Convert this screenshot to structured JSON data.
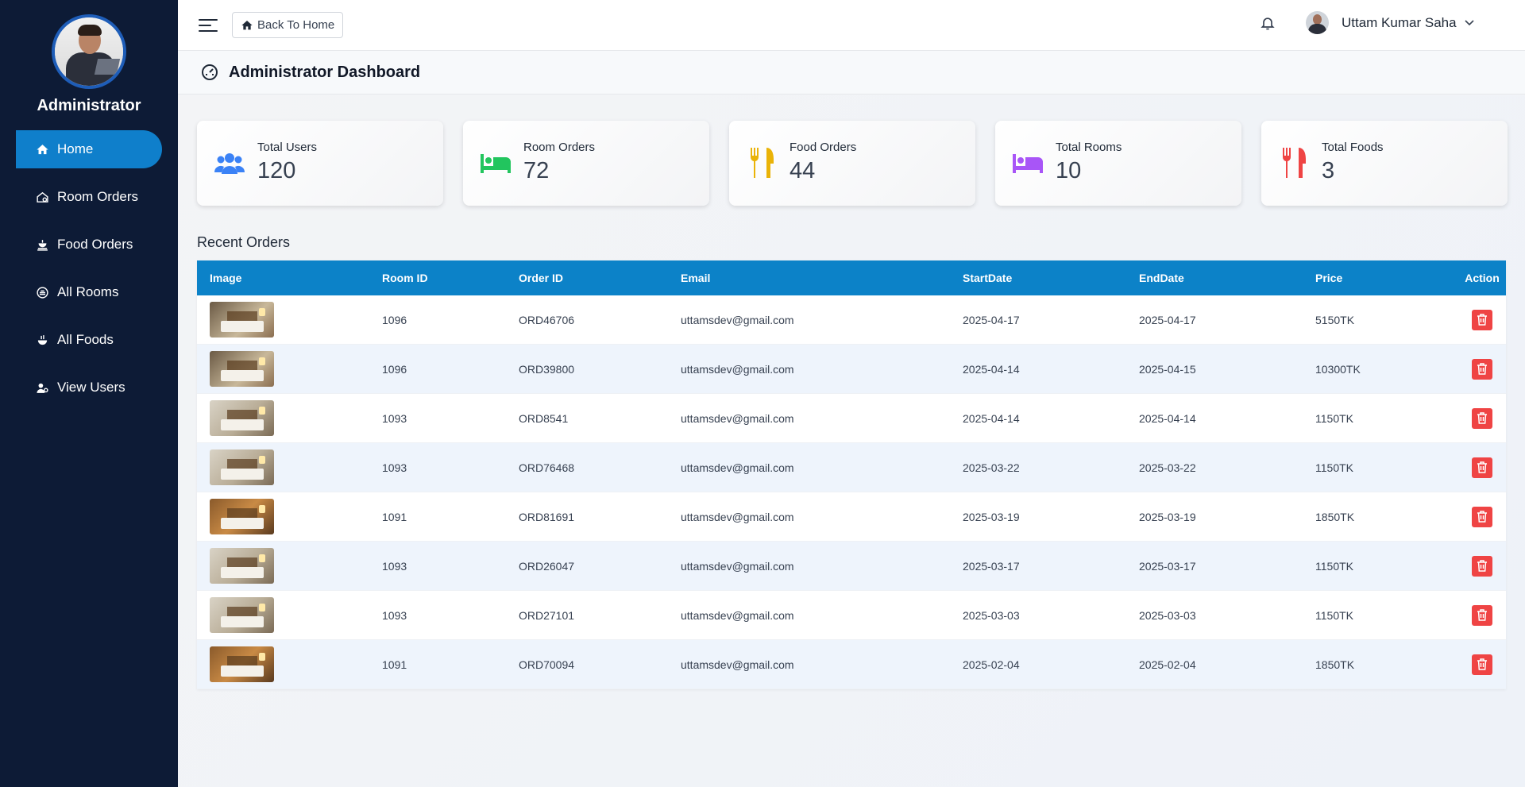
{
  "sidebar": {
    "title": "Administrator",
    "items": [
      {
        "label": "Home",
        "icon": "home-icon"
      },
      {
        "label": "Room Orders",
        "icon": "room-order-icon"
      },
      {
        "label": "Food Orders",
        "icon": "food-order-icon"
      },
      {
        "label": "All Rooms",
        "icon": "rooms-icon"
      },
      {
        "label": "All Foods",
        "icon": "foods-icon"
      },
      {
        "label": "View Users",
        "icon": "users-icon"
      }
    ]
  },
  "header": {
    "back_label": "Back To Home",
    "user_name": "Uttam Kumar Saha"
  },
  "page": {
    "title": "Administrator Dashboard"
  },
  "stats": [
    {
      "label": "Total Users",
      "value": "120",
      "color": "#3b82f6"
    },
    {
      "label": "Room Orders",
      "value": "72",
      "color": "#22c55e"
    },
    {
      "label": "Food Orders",
      "value": "44",
      "color": "#eab308"
    },
    {
      "label": "Total Rooms",
      "value": "10",
      "color": "#a855f7"
    },
    {
      "label": "Total Foods",
      "value": "3",
      "color": "#ef4444"
    }
  ],
  "recent": {
    "title": "Recent Orders",
    "columns": [
      "Image",
      "Room ID",
      "Order ID",
      "Email",
      "StartDate",
      "EndDate",
      "Price",
      "Action"
    ],
    "rows": [
      {
        "room": "1096",
        "order": "ORD46706",
        "email": "uttamsdev@gmail.com",
        "start": "2025-04-17",
        "end": "2025-04-17",
        "price": "5150TK"
      },
      {
        "room": "1096",
        "order": "ORD39800",
        "email": "uttamsdev@gmail.com",
        "start": "2025-04-14",
        "end": "2025-04-15",
        "price": "10300TK"
      },
      {
        "room": "1093",
        "order": "ORD8541",
        "email": "uttamsdev@gmail.com",
        "start": "2025-04-14",
        "end": "2025-04-14",
        "price": "1150TK"
      },
      {
        "room": "1093",
        "order": "ORD76468",
        "email": "uttamsdev@gmail.com",
        "start": "2025-03-22",
        "end": "2025-03-22",
        "price": "1150TK"
      },
      {
        "room": "1091",
        "order": "ORD81691",
        "email": "uttamsdev@gmail.com",
        "start": "2025-03-19",
        "end": "2025-03-19",
        "price": "1850TK"
      },
      {
        "room": "1093",
        "order": "ORD26047",
        "email": "uttamsdev@gmail.com",
        "start": "2025-03-17",
        "end": "2025-03-17",
        "price": "1150TK"
      },
      {
        "room": "1093",
        "order": "ORD27101",
        "email": "uttamsdev@gmail.com",
        "start": "2025-03-03",
        "end": "2025-03-03",
        "price": "1150TK"
      },
      {
        "room": "1091",
        "order": "ORD70094",
        "email": "uttamsdev@gmail.com",
        "start": "2025-02-04",
        "end": "2025-02-04",
        "price": "1850TK"
      }
    ]
  }
}
